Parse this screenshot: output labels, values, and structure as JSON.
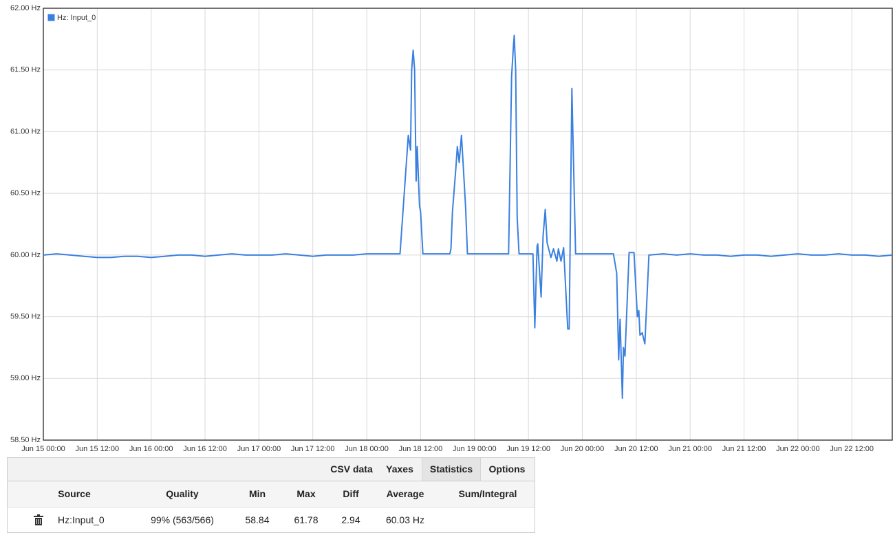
{
  "chart_data": {
    "type": "line",
    "ylim": [
      58.5,
      62.0
    ],
    "yticks": [
      {
        "value": 58.5,
        "label": "58.50 Hz"
      },
      {
        "value": 59.0,
        "label": "59.00 Hz"
      },
      {
        "value": 59.5,
        "label": "59.50 Hz"
      },
      {
        "value": 60.0,
        "label": "60.00 Hz"
      },
      {
        "value": 60.5,
        "label": "60.50 Hz"
      },
      {
        "value": 61.0,
        "label": "61.00 Hz"
      },
      {
        "value": 61.5,
        "label": "61.50 Hz"
      },
      {
        "value": 62.0,
        "label": "62.00 Hz"
      }
    ],
    "xlim": [
      "Jun 15 00:00",
      "Jun 22 21:00"
    ],
    "xticks": [
      "Jun 15 00:00",
      "Jun 15 12:00",
      "Jun 16 00:00",
      "Jun 16 12:00",
      "Jun 17 00:00",
      "Jun 17 12:00",
      "Jun 18 00:00",
      "Jun 18 12:00",
      "Jun 19 00:00",
      "Jun 19 12:00",
      "Jun 20 00:00",
      "Jun 20 12:00",
      "Jun 21 00:00",
      "Jun 21 12:00",
      "Jun 22 00:00",
      "Jun 22 12:00"
    ],
    "grid": true,
    "legend": "top-left",
    "x": [
      "Jun 15 00:00",
      "Jun 15 03:00",
      "Jun 15 06:00",
      "Jun 15 09:00",
      "Jun 15 12:00",
      "Jun 15 15:00",
      "Jun 15 18:00",
      "Jun 15 21:00",
      "Jun 16 00:00",
      "Jun 16 03:00",
      "Jun 16 06:00",
      "Jun 16 09:00",
      "Jun 16 12:00",
      "Jun 16 15:00",
      "Jun 16 18:00",
      "Jun 16 21:00",
      "Jun 17 00:00",
      "Jun 17 03:00",
      "Jun 17 06:00",
      "Jun 17 09:00",
      "Jun 17 12:00",
      "Jun 17 15:00",
      "Jun 17 18:00",
      "Jun 17 21:00",
      "Jun 18 00:00",
      "Jun 18 03:00",
      "Jun 18 07:25",
      "Jun 18 09:15",
      "Jun 18 09:45",
      "Jun 18 10:00",
      "Jun 18 10:20",
      "Jun 18 10:40",
      "Jun 18 11:00",
      "Jun 18 11:15",
      "Jun 18 11:45",
      "Jun 18 12:00",
      "Jun 18 12:30",
      "Jun 18 18:30",
      "Jun 18 18:45",
      "Jun 18 19:05",
      "Jun 18 19:50",
      "Jun 18 20:10",
      "Jun 18 20:35",
      "Jun 18 21:05",
      "Jun 18 21:20",
      "Jun 18 22:00",
      "Jun 18 22:25",
      "Jun 19 00:00",
      "Jun 19 03:00",
      "Jun 19 07:35",
      "Jun 19 08:15",
      "Jun 19 08:40",
      "Jun 19 08:50",
      "Jun 19 09:10",
      "Jun 19 09:30",
      "Jun 19 09:55",
      "Jun 19 13:00",
      "Jun 19 13:25",
      "Jun 19 13:55",
      "Jun 19 14:05",
      "Jun 19 14:50",
      "Jun 19 15:15",
      "Jun 19 15:45",
      "Jun 19 16:10",
      "Jun 19 17:00",
      "Jun 19 17:35",
      "Jun 19 18:20",
      "Jun 19 18:40",
      "Jun 19 19:15",
      "Jun 19 19:50",
      "Jun 19 20:45",
      "Jun 19 21:05",
      "Jun 19 21:40",
      "Jun 19 22:30",
      "Jun 20 00:00",
      "Jun 20 03:00",
      "Jun 20 06:55",
      "Jun 20 07:40",
      "Jun 20 08:05",
      "Jun 20 08:25",
      "Jun 20 08:55",
      "Jun 20 09:10",
      "Jun 20 09:30",
      "Jun 20 10:25",
      "Jun 20 11:30",
      "Jun 20 11:45",
      "Jun 20 12:15",
      "Jun 20 12:35",
      "Jun 20 12:50",
      "Jun 20 13:20",
      "Jun 20 13:55",
      "Jun 20 14:50",
      "Jun 20 18:00",
      "Jun 20 21:00",
      "Jun 21 00:00",
      "Jun 21 03:00",
      "Jun 21 06:00",
      "Jun 21 09:00",
      "Jun 21 12:00",
      "Jun 21 15:00",
      "Jun 21 18:00",
      "Jun 21 21:00",
      "Jun 22 00:00",
      "Jun 22 03:00",
      "Jun 22 06:00",
      "Jun 22 09:00",
      "Jun 22 12:00",
      "Jun 22 15:00",
      "Jun 22 18:00",
      "Jun 22 21:00"
    ],
    "series": [
      {
        "name": "Hz: Input_0",
        "color": "#3a80e0",
        "values": [
          60.0,
          60.01,
          60.0,
          59.99,
          59.98,
          59.98,
          59.99,
          59.99,
          59.98,
          59.99,
          60.0,
          60.0,
          59.99,
          60.0,
          60.01,
          60.0,
          60.0,
          60.0,
          60.01,
          60.0,
          59.99,
          60.0,
          60.0,
          60.0,
          60.01,
          60.01,
          60.01,
          60.97,
          60.85,
          61.5,
          61.66,
          61.5,
          60.6,
          60.88,
          60.4,
          60.35,
          60.01,
          60.01,
          60.05,
          60.35,
          60.7,
          60.88,
          60.75,
          60.97,
          60.82,
          60.4,
          60.01,
          60.01,
          60.01,
          60.01,
          61.45,
          61.7,
          61.78,
          61.5,
          60.3,
          60.01,
          60.01,
          59.41,
          60.07,
          60.09,
          59.66,
          60.15,
          60.37,
          60.1,
          59.98,
          60.05,
          59.95,
          60.05,
          59.95,
          60.06,
          59.4,
          59.4,
          61.35,
          60.01,
          60.01,
          60.01,
          60.01,
          59.85,
          59.15,
          59.48,
          58.84,
          59.25,
          59.18,
          60.02,
          60.02,
          59.85,
          59.5,
          59.55,
          59.35,
          59.37,
          59.28,
          60.0,
          60.01,
          60.0,
          60.01,
          60.0,
          60.0,
          59.99,
          60.0,
          60.0,
          59.99,
          60.0,
          60.01,
          60.0,
          60.0,
          60.01,
          60.0,
          60.0,
          59.99,
          60.0
        ]
      }
    ]
  },
  "tabs": [
    "CSV data",
    "Yaxes",
    "Statistics",
    "Options"
  ],
  "active_tab": "Statistics",
  "table": {
    "headers": [
      "Source",
      "Quality",
      "Min",
      "Max",
      "Diff",
      "Average",
      "Sum/Integral"
    ],
    "rows": [
      [
        "Hz:Input_0",
        "99% (563/566)",
        "58.84",
        "61.78",
        "2.94",
        "60.03 Hz"
      ]
    ]
  }
}
